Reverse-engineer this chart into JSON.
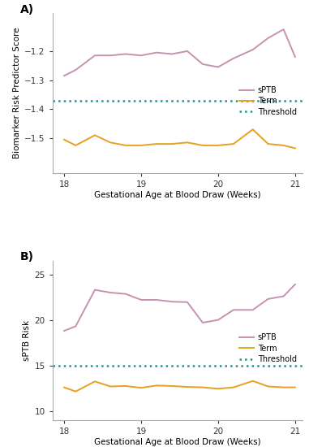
{
  "panel_A": {
    "label": "A)",
    "ylabel": "Biomarker Risk Predictor Score",
    "xlabel": "Gestational Age at Blood Draw (Weeks)",
    "threshold": -1.37,
    "ylim": [
      -1.62,
      -1.07
    ],
    "yticks": [
      -1.2,
      -1.3,
      -1.4,
      -1.5
    ],
    "sPTB_x": [
      18.0,
      18.15,
      18.4,
      18.6,
      18.8,
      19.0,
      19.2,
      19.4,
      19.6,
      19.8,
      20.0,
      20.2,
      20.45,
      20.65,
      20.85,
      21.0
    ],
    "sPTB_y": [
      -1.285,
      -1.265,
      -1.215,
      -1.215,
      -1.21,
      -1.215,
      -1.205,
      -1.21,
      -1.2,
      -1.245,
      -1.255,
      -1.225,
      -1.195,
      -1.155,
      -1.125,
      -1.22
    ],
    "term_x": [
      18.0,
      18.15,
      18.4,
      18.6,
      18.8,
      19.0,
      19.2,
      19.4,
      19.6,
      19.8,
      20.0,
      20.2,
      20.45,
      20.65,
      20.85,
      21.0
    ],
    "term_y": [
      -1.505,
      -1.525,
      -1.49,
      -1.515,
      -1.525,
      -1.525,
      -1.52,
      -1.52,
      -1.515,
      -1.525,
      -1.525,
      -1.52,
      -1.47,
      -1.52,
      -1.525,
      -1.535
    ],
    "sptb_color": "#c792b0",
    "term_color": "#e8a020",
    "threshold_color": "#1a9696"
  },
  "panel_B": {
    "label": "B)",
    "ylabel": "sPTB Risk",
    "xlabel": "Gestational Age at Blood Draw (Weeks)",
    "threshold": 15.0,
    "ylim": [
      9.0,
      26.5
    ],
    "yticks": [
      10,
      15,
      20,
      25
    ],
    "sPTB_x": [
      18.0,
      18.15,
      18.4,
      18.6,
      18.8,
      19.0,
      19.2,
      19.4,
      19.6,
      19.8,
      20.0,
      20.2,
      20.45,
      20.65,
      20.85,
      21.0
    ],
    "sPTB_y": [
      18.8,
      19.3,
      23.3,
      23.0,
      22.85,
      22.2,
      22.2,
      22.0,
      21.95,
      19.7,
      20.0,
      21.1,
      21.1,
      22.3,
      22.6,
      23.9
    ],
    "term_x": [
      18.0,
      18.15,
      18.4,
      18.6,
      18.8,
      19.0,
      19.2,
      19.4,
      19.6,
      19.8,
      20.0,
      20.2,
      20.45,
      20.65,
      20.85,
      21.0
    ],
    "term_y": [
      12.6,
      12.15,
      13.25,
      12.7,
      12.75,
      12.55,
      12.8,
      12.75,
      12.65,
      12.6,
      12.45,
      12.6,
      13.3,
      12.7,
      12.6,
      12.6
    ],
    "sptb_color": "#c792b0",
    "term_color": "#e8a020",
    "threshold_color": "#1a9696"
  },
  "background_color": "#ffffff",
  "xticks": [
    18,
    19,
    20,
    21
  ],
  "xlim": [
    17.85,
    21.1
  ],
  "spine_color": "#aaaaaa"
}
